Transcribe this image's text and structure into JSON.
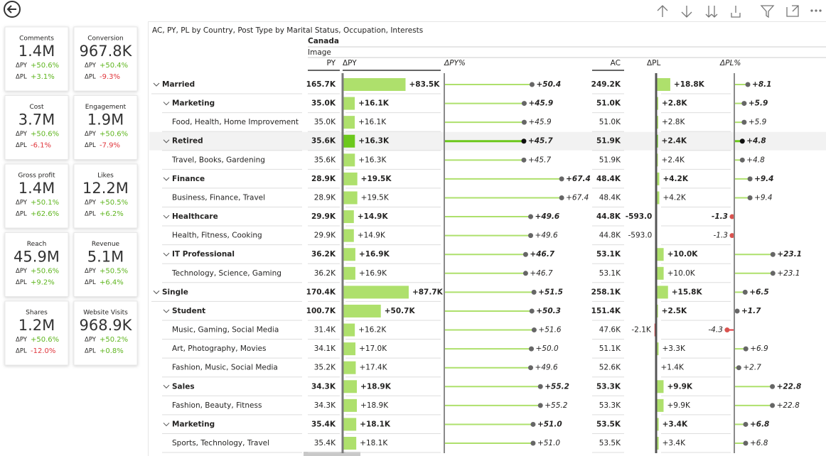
{
  "cards": {
    "delta_labels": [
      "ΔPY",
      "ΔPL"
    ],
    "items": [
      {
        "title": "Comments",
        "value": "1.4M",
        "dpy": "+50.6%",
        "dpl": "+3.1%"
      },
      {
        "title": "Conversion",
        "value": "967.8K",
        "dpy": "+50.4%",
        "dpl": "-9.3%"
      },
      {
        "title": "Cost",
        "value": "3.7M",
        "dpy": "+50.6%",
        "dpl": "-6.1%"
      },
      {
        "title": "Engagement",
        "value": "1.9M",
        "dpy": "+50.6%",
        "dpl": "-7.9%"
      },
      {
        "title": "Gross profit",
        "value": "1.4M",
        "dpy": "+50.1%",
        "dpl": "+62.6%"
      },
      {
        "title": "Likes",
        "value": "12.2M",
        "dpy": "+50.5%",
        "dpl": "+6.2%"
      },
      {
        "title": "Reach",
        "value": "45.9M",
        "dpy": "+50.6%",
        "dpl": "+9.2%"
      },
      {
        "title": "Revenue",
        "value": "5.1M",
        "dpy": "+50.5%",
        "dpl": "+6.4%"
      },
      {
        "title": "Shares",
        "value": "1.2M",
        "dpy": "+50.6%",
        "dpl": "-12.0%"
      },
      {
        "title": "Website Visits",
        "value": "968.9K",
        "dpy": "+50.2%",
        "dpl": "+0.8%"
      }
    ]
  },
  "table": {
    "title": "AC, PY, PL by Country, Post Type by Marital Status, Occupation, Interests",
    "country": "Canada",
    "post_type": "Image",
    "headers": [
      "PY",
      "ΔPY",
      "ΔPY%",
      "AC",
      "ΔPL",
      "ΔPL%"
    ],
    "rows": [
      {
        "label": "Married",
        "level": 0,
        "py": "165.7K",
        "dpy": {
          "value": 83500,
          "label": "+83.5K"
        },
        "dpy_pct": {
          "value": 50.4,
          "label": "+50.4"
        },
        "ac": "249.2K",
        "dpl": {
          "value": 18800,
          "label": "+18.8K"
        },
        "dpl_pct": {
          "value": 8.1,
          "label": "+8.1"
        }
      },
      {
        "label": "Marketing",
        "level": 1,
        "py": "35.0K",
        "dpy": {
          "value": 16100,
          "label": "+16.1K"
        },
        "dpy_pct": {
          "value": 45.9,
          "label": "+45.9"
        },
        "ac": "51.0K",
        "dpl": {
          "value": 2800,
          "label": "+2.8K"
        },
        "dpl_pct": {
          "value": 5.9,
          "label": "+5.9"
        }
      },
      {
        "label": "Food, Health, Home Improvement",
        "level": 2,
        "py": "35.0K",
        "dpy": {
          "value": 16100,
          "label": "+16.1K"
        },
        "dpy_pct": {
          "value": 45.9,
          "label": "+45.9"
        },
        "ac": "51.0K",
        "dpl": {
          "value": 2800,
          "label": "+2.8K"
        },
        "dpl_pct": {
          "value": 5.9,
          "label": "+5.9"
        }
      },
      {
        "label": "Retired",
        "level": 1,
        "highlight": true,
        "py": "35.6K",
        "dpy": {
          "value": 16300,
          "label": "+16.3K"
        },
        "dpy_pct": {
          "value": 45.7,
          "label": "+45.7"
        },
        "ac": "51.9K",
        "dpl": {
          "value": 2400,
          "label": "+2.4K"
        },
        "dpl_pct": {
          "value": 4.8,
          "label": "+4.8"
        }
      },
      {
        "label": "Travel, Books, Gardening",
        "level": 2,
        "py": "35.6K",
        "dpy": {
          "value": 16300,
          "label": "+16.3K"
        },
        "dpy_pct": {
          "value": 45.7,
          "label": "+45.7"
        },
        "ac": "51.9K",
        "dpl": {
          "value": 2400,
          "label": "+2.4K"
        },
        "dpl_pct": {
          "value": 4.8,
          "label": "+4.8"
        }
      },
      {
        "label": "Finance",
        "level": 1,
        "py": "28.9K",
        "dpy": {
          "value": 19500,
          "label": "+19.5K"
        },
        "dpy_pct": {
          "value": 67.4,
          "label": "+67.4"
        },
        "ac": "48.4K",
        "dpl": {
          "value": 4200,
          "label": "+4.2K"
        },
        "dpl_pct": {
          "value": 9.4,
          "label": "+9.4"
        }
      },
      {
        "label": "Business, Finance, Travel",
        "level": 2,
        "py": "28.9K",
        "dpy": {
          "value": 19500,
          "label": "+19.5K"
        },
        "dpy_pct": {
          "value": 67.4,
          "label": "+67.4"
        },
        "ac": "48.4K",
        "dpl": {
          "value": 4200,
          "label": "+4.2K"
        },
        "dpl_pct": {
          "value": 9.4,
          "label": "+9.4"
        }
      },
      {
        "label": "Healthcare",
        "level": 1,
        "py": "29.9K",
        "dpy": {
          "value": 14900,
          "label": "+14.9K"
        },
        "dpy_pct": {
          "value": 49.6,
          "label": "+49.6"
        },
        "ac": "44.8K",
        "dpl": {
          "value": -593,
          "label": "-593.0"
        },
        "dpl_pct": {
          "value": -1.3,
          "label": "-1.3"
        }
      },
      {
        "label": "Health, Fitness, Cooking",
        "level": 2,
        "py": "29.9K",
        "dpy": {
          "value": 14900,
          "label": "+14.9K"
        },
        "dpy_pct": {
          "value": 49.6,
          "label": "+49.6"
        },
        "ac": "44.8K",
        "dpl": {
          "value": -593,
          "label": "-593.0"
        },
        "dpl_pct": {
          "value": -1.3,
          "label": "-1.3"
        }
      },
      {
        "label": "IT Professional",
        "level": 1,
        "py": "36.2K",
        "dpy": {
          "value": 16900,
          "label": "+16.9K"
        },
        "dpy_pct": {
          "value": 46.7,
          "label": "+46.7"
        },
        "ac": "53.1K",
        "dpl": {
          "value": 10000,
          "label": "+10.0K"
        },
        "dpl_pct": {
          "value": 23.1,
          "label": "+23.1"
        }
      },
      {
        "label": "Technology, Science, Gaming",
        "level": 2,
        "py": "36.2K",
        "dpy": {
          "value": 16900,
          "label": "+16.9K"
        },
        "dpy_pct": {
          "value": 46.7,
          "label": "+46.7"
        },
        "ac": "53.1K",
        "dpl": {
          "value": 10000,
          "label": "+10.0K"
        },
        "dpl_pct": {
          "value": 23.1,
          "label": "+23.1"
        }
      },
      {
        "label": "Single",
        "level": 0,
        "py": "170.4K",
        "dpy": {
          "value": 87700,
          "label": "+87.7K"
        },
        "dpy_pct": {
          "value": 51.5,
          "label": "+51.5"
        },
        "ac": "258.1K",
        "dpl": {
          "value": 15800,
          "label": "+15.8K"
        },
        "dpl_pct": {
          "value": 6.5,
          "label": "+6.5"
        }
      },
      {
        "label": "Student",
        "level": 1,
        "py": "100.7K",
        "dpy": {
          "value": 50700,
          "label": "+50.7K"
        },
        "dpy_pct": {
          "value": 50.3,
          "label": "+50.3"
        },
        "ac": "151.4K",
        "dpl": {
          "value": 2500,
          "label": "+2.5K"
        },
        "dpl_pct": {
          "value": 1.7,
          "label": "+1.7"
        }
      },
      {
        "label": "Music, Gaming, Social Media",
        "level": 2,
        "py": "31.4K",
        "dpy": {
          "value": 16200,
          "label": "+16.2K"
        },
        "dpy_pct": {
          "value": 51.6,
          "label": "+51.6"
        },
        "ac": "47.6K",
        "dpl": {
          "value": -2100,
          "label": "-2.1K"
        },
        "dpl_pct": {
          "value": -4.3,
          "label": "-4.3"
        }
      },
      {
        "label": "Art, Photography, Movies",
        "level": 2,
        "py": "34.1K",
        "dpy": {
          "value": 17000,
          "label": "+17.0K"
        },
        "dpy_pct": {
          "value": 50.0,
          "label": "+50.0"
        },
        "ac": "51.1K",
        "dpl": {
          "value": 3300,
          "label": "+3.3K"
        },
        "dpl_pct": {
          "value": 6.9,
          "label": "+6.9"
        }
      },
      {
        "label": "Fashion, Music, Social Media",
        "level": 2,
        "py": "35.2K",
        "dpy": {
          "value": 17400,
          "label": "+17.4K"
        },
        "dpy_pct": {
          "value": 49.6,
          "label": "+49.6"
        },
        "ac": "52.6K",
        "dpl": {
          "value": 1400,
          "label": "+1.4K"
        },
        "dpl_pct": {
          "value": 2.7,
          "label": "+2.7"
        }
      },
      {
        "label": "Sales",
        "level": 1,
        "py": "34.3K",
        "dpy": {
          "value": 18900,
          "label": "+18.9K"
        },
        "dpy_pct": {
          "value": 55.2,
          "label": "+55.2"
        },
        "ac": "53.3K",
        "dpl": {
          "value": 9900,
          "label": "+9.9K"
        },
        "dpl_pct": {
          "value": 22.8,
          "label": "+22.8"
        }
      },
      {
        "label": "Fashion, Beauty, Fitness",
        "level": 2,
        "py": "34.3K",
        "dpy": {
          "value": 18900,
          "label": "+18.9K"
        },
        "dpy_pct": {
          "value": 55.2,
          "label": "+55.2"
        },
        "ac": "53.3K",
        "dpl": {
          "value": 9900,
          "label": "+9.9K"
        },
        "dpl_pct": {
          "value": 22.8,
          "label": "+22.8"
        }
      },
      {
        "label": "Marketing",
        "level": 1,
        "py": "35.4K",
        "dpy": {
          "value": 18100,
          "label": "+18.1K"
        },
        "dpy_pct": {
          "value": 51.0,
          "label": "+51.0"
        },
        "ac": "53.5K",
        "dpl": {
          "value": 3400,
          "label": "+3.4K"
        },
        "dpl_pct": {
          "value": 6.8,
          "label": "+6.8"
        }
      },
      {
        "label": "Sports, Technology, Travel",
        "level": 2,
        "py": "35.4K",
        "dpy": {
          "value": 18100,
          "label": "+18.1K"
        },
        "dpy_pct": {
          "value": 51.0,
          "label": "+51.0"
        },
        "ac": "53.5K",
        "dpl": {
          "value": 3400,
          "label": "+3.4K"
        },
        "dpl_pct": {
          "value": 6.8,
          "label": "+6.8"
        }
      }
    ]
  }
}
